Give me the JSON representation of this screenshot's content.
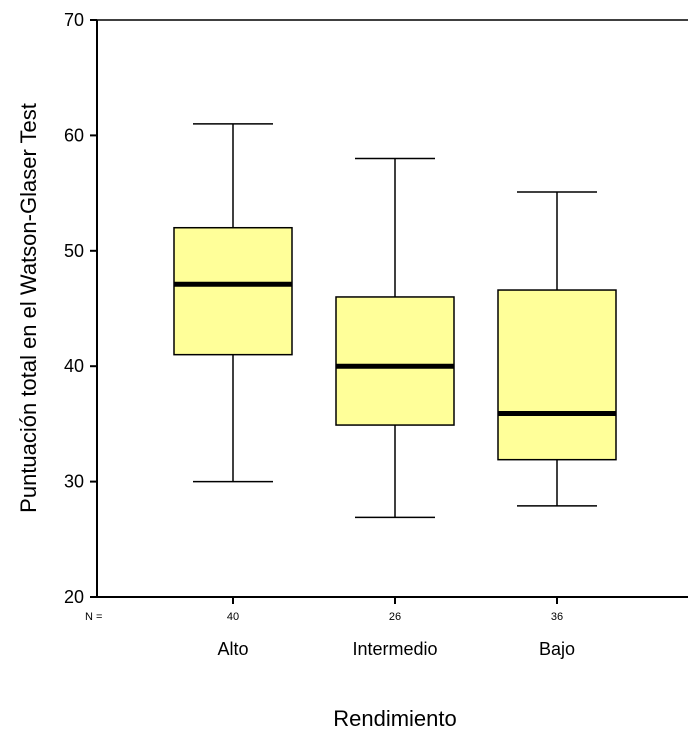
{
  "chart_data": {
    "type": "box",
    "ylabel": "Puntuación total en el Watson-Glaser Test",
    "xlabel": "Rendimiento",
    "ylim": [
      20,
      70
    ],
    "yticks": [
      "20",
      "30",
      "40",
      "50",
      "60",
      "70"
    ],
    "n_prefix": "N =",
    "box_color": "#ffff99",
    "categories": [
      "Alto",
      "Intermedio",
      "Bajo"
    ],
    "n": [
      "40",
      "26",
      "36"
    ],
    "boxes": [
      {
        "min": 30,
        "q1": 41,
        "median": 47.1,
        "q3": 52,
        "max": 61
      },
      {
        "min": 26.9,
        "q1": 34.9,
        "median": 40,
        "q3": 46,
        "max": 58
      },
      {
        "min": 27.9,
        "q1": 31.9,
        "median": 35.9,
        "q3": 46.6,
        "max": 55.1
      }
    ]
  }
}
